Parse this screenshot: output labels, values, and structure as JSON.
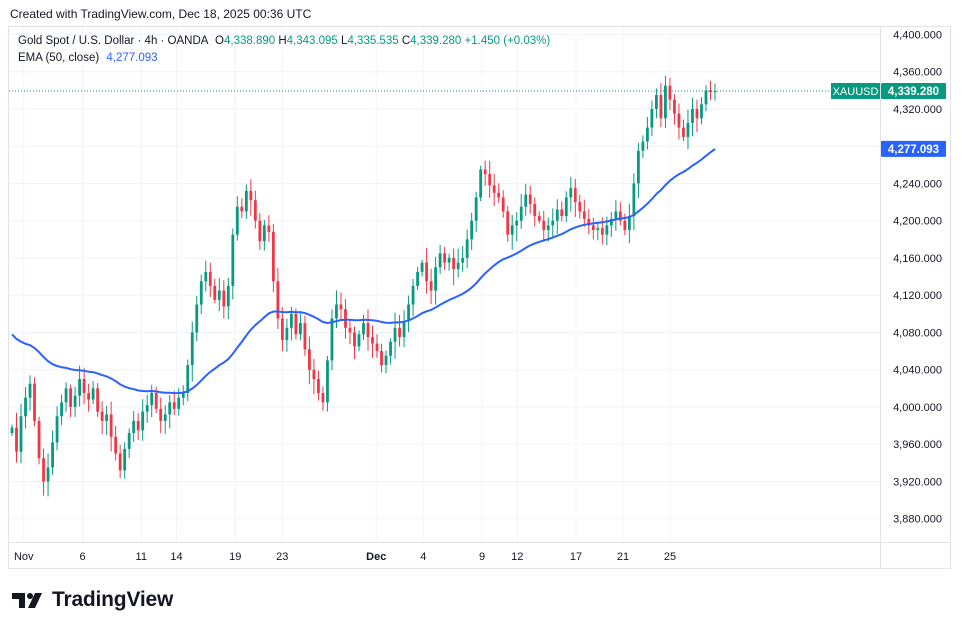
{
  "header": {
    "caption": "Created with TradingView.com, Dec 18, 2025 00:36 UTC"
  },
  "legend": {
    "title": "Gold Spot / U.S. Dollar · 4h · OANDA",
    "open_prefix": "O",
    "open": "4,338.890",
    "high_prefix": "H",
    "high": "4,343.095",
    "low_prefix": "L",
    "low": "4,335.535",
    "close_prefix": "C",
    "close": "4,339.280",
    "change": "+1.450 (+0.03%)",
    "ema_label": "EMA (50, close)",
    "ema_value": "4,277.093"
  },
  "price_tags": {
    "symbol": "XAUUSD",
    "last": "4,339.280",
    "ema": "4,277.093"
  },
  "colors": {
    "up": "#089981",
    "down": "#f23645",
    "ema": "#2962ff",
    "grid": "#f0f3fa",
    "text": "#131722"
  },
  "footer": {
    "brand": "TradingView",
    "logo_icon": "tradingview-logo-icon"
  },
  "chart_data": {
    "type": "candlestick",
    "instrument": "Gold Spot / U.S. Dollar",
    "timeframe": "4h",
    "y_ticks": [
      3880,
      3920,
      3960,
      4000,
      4040,
      4080,
      4120,
      4160,
      4200,
      4240,
      4280,
      4320,
      4360,
      4400
    ],
    "y_tick_labels": [
      "3,880.000",
      "3,920.000",
      "3,960.000",
      "4,000.000",
      "4,040.000",
      "4,080.000",
      "4,120.000",
      "4,160.000",
      "4,200.000",
      "4,240.000",
      "4,280.000",
      "4,320.000",
      "4,360.000",
      "4,400.000"
    ],
    "ylim": [
      3855,
      4408
    ],
    "x_ticks": [
      {
        "label": "Nov",
        "day": 1,
        "bold": false
      },
      {
        "label": "6",
        "day": 6,
        "bold": false
      },
      {
        "label": "11",
        "day": 11,
        "bold": false
      },
      {
        "label": "14",
        "day": 14,
        "bold": false
      },
      {
        "label": "19",
        "day": 19,
        "bold": false
      },
      {
        "label": "23",
        "day": 23,
        "bold": false
      },
      {
        "label": "Dec",
        "day": 31,
        "bold": true
      },
      {
        "label": "4",
        "day": 35,
        "bold": false
      },
      {
        "label": "9",
        "day": 40,
        "bold": false
      },
      {
        "label": "12",
        "day": 43,
        "bold": false
      },
      {
        "label": "17",
        "day": 48,
        "bold": false
      },
      {
        "label": "21",
        "day": 52,
        "bold": false
      },
      {
        "label": "25",
        "day": 56,
        "bold": false
      }
    ],
    "x_axis_note": "day = days since Oct 31 2025",
    "candles_close": [
      3978,
      3952,
      3990,
      4010,
      4025,
      3985,
      3945,
      3920,
      3935,
      3962,
      3990,
      4005,
      4020,
      4000,
      4012,
      4030,
      4015,
      4008,
      4020,
      3995,
      3985,
      3992,
      3968,
      3950,
      3932,
      3955,
      3972,
      3985,
      3975,
      3995,
      4002,
      4015,
      3998,
      3985,
      3992,
      4005,
      3998,
      4010,
      4015,
      4045,
      4080,
      4110,
      4135,
      4145,
      4130,
      4115,
      4125,
      4108,
      4130,
      4185,
      4215,
      4210,
      4232,
      4222,
      4200,
      4178,
      4195,
      4188,
      4135,
      4095,
      4072,
      4085,
      4100,
      4078,
      4090,
      4062,
      4040,
      4030,
      4015,
      4005,
      4050,
      4095,
      4110,
      4105,
      4085,
      4080,
      4065,
      4078,
      4090,
      4075,
      4068,
      4060,
      4045,
      4055,
      4070,
      4085,
      4075,
      4092,
      4110,
      4130,
      4145,
      4155,
      4135,
      4125,
      4150,
      4165,
      4155,
      4160,
      4148,
      4155,
      4160,
      4180,
      4200,
      4225,
      4255,
      4250,
      4238,
      4230,
      4225,
      4210,
      4185,
      4195,
      4200,
      4215,
      4228,
      4218,
      4205,
      4200,
      4190,
      4195,
      4200,
      4212,
      4205,
      4225,
      4235,
      4220,
      4210,
      4202,
      4195,
      4190,
      4192,
      4185,
      4195,
      4202,
      4210,
      4200,
      4190,
      4205,
      4240,
      4275,
      4285,
      4300,
      4320,
      4335,
      4310,
      4345,
      4330,
      4315,
      4300,
      4290,
      4305,
      4320,
      4310,
      4325,
      4340,
      4338,
      4339.28
    ],
    "ema": {
      "name": "EMA (50, close)",
      "last": 4277.093,
      "start": 4082
    }
  }
}
